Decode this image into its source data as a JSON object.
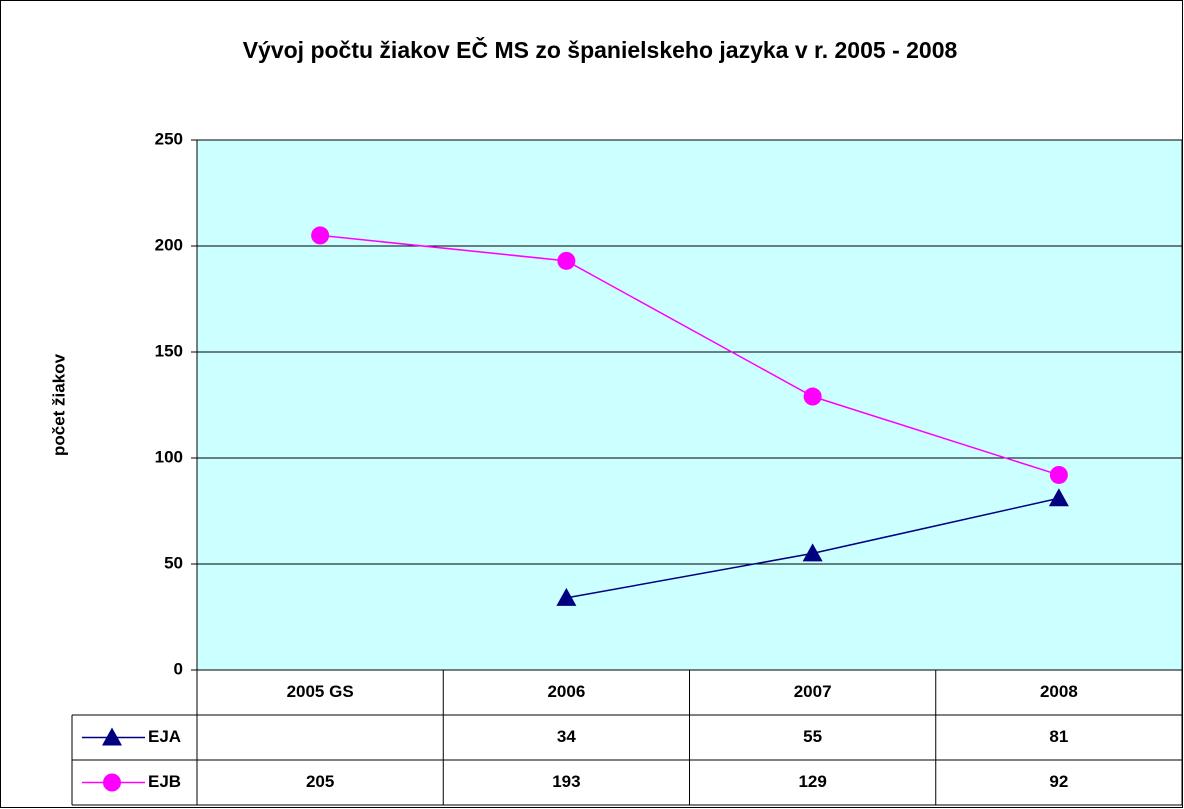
{
  "chart_data": {
    "type": "line",
    "title": "Vývoj počtu žiakov EČ MS zo španielskeho jazyka v r. 2005 - 2008",
    "y_label": "počet žiakov",
    "categories": [
      "2005 GS",
      "2006",
      "2007",
      "2008"
    ],
    "series": [
      {
        "name": "EJA",
        "color": "#000080",
        "marker": "triangle",
        "values": [
          null,
          34,
          55,
          81
        ]
      },
      {
        "name": "EJB",
        "color": "#ff00ff",
        "marker": "circle",
        "values": [
          205,
          193,
          129,
          92
        ]
      }
    ],
    "ylim": [
      0,
      250
    ],
    "yticks": [
      0,
      50,
      100,
      150,
      200,
      250
    ],
    "grid": true,
    "plot_background": "#ccffff"
  }
}
